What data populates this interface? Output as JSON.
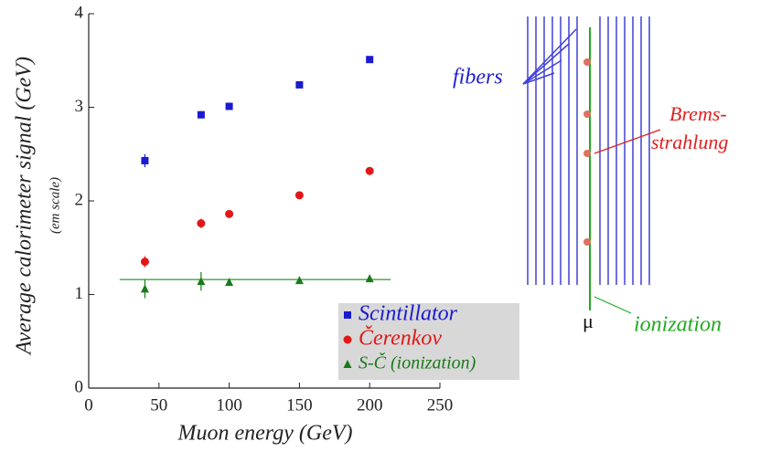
{
  "chart_data": {
    "type": "scatter",
    "x_label": "Muon energy (GeV)",
    "y_label": "Average calorimeter signal (GeV)",
    "y_sublabel": "(em scale)",
    "xlim": [
      0,
      250
    ],
    "xticks": [
      0,
      50,
      100,
      150,
      200,
      250
    ],
    "ylim": [
      0,
      4
    ],
    "yticks": [
      0,
      1,
      2,
      3,
      4
    ],
    "grid": false,
    "x": [
      40,
      80,
      100,
      150,
      200
    ],
    "series": [
      {
        "name": "Scintillator",
        "color": "#1a1ad0",
        "marker": "square",
        "values": [
          2.43,
          2.92,
          3.01,
          3.24,
          3.51
        ],
        "errors": [
          0.07,
          0.04,
          0.02,
          0.02,
          0.02
        ]
      },
      {
        "name": "Čerenkov",
        "color": "#e01818",
        "marker": "circle",
        "values": [
          1.35,
          1.76,
          1.86,
          2.06,
          2.32
        ],
        "errors": [
          0.06,
          0.05,
          0.02,
          0.02,
          0.02
        ]
      },
      {
        "name": "S-Č (ionization)",
        "color": "#1a7a1a",
        "marker": "triangle",
        "values": [
          1.06,
          1.14,
          1.13,
          1.15,
          1.17
        ],
        "errors": [
          0.1,
          0.1,
          0.03,
          0.02,
          0.02
        ]
      }
    ],
    "fit_line": {
      "color": "#2a9a2a",
      "x": [
        22,
        215
      ],
      "values": [
        1.16,
        1.16
      ]
    }
  },
  "diagram": {
    "fibers_label": "fibers",
    "brems_label": [
      "Brems-",
      "strahlung"
    ],
    "muon_label": "μ",
    "ionization_label": "ionization"
  }
}
